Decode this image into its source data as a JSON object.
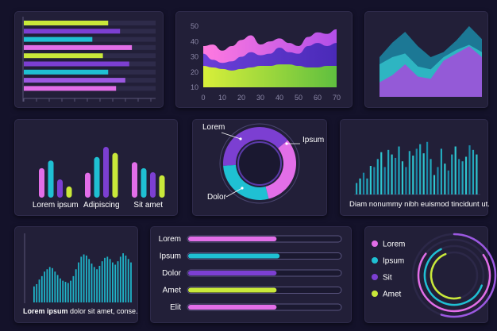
{
  "colors": {
    "pink": "#e26ee8",
    "cyan": "#1fc0d3",
    "purple": "#7c3fd2",
    "lime": "#c9e83a",
    "teal": "#17a0b6",
    "violet": "#9b58e0"
  },
  "panel1": {
    "chart_data": {
      "type": "bar",
      "orientation": "horizontal",
      "max": 100,
      "values": [
        64,
        73,
        52,
        82,
        60,
        80,
        64,
        77,
        70
      ],
      "colors": [
        "lime",
        "purple",
        "cyan",
        "pink",
        "lime",
        "purple",
        "cyan",
        "violet",
        "pink"
      ]
    }
  },
  "panel2": {
    "chart_data": {
      "type": "area",
      "x_ticks": [
        "0",
        "10",
        "20",
        "30",
        "40",
        "50",
        "60",
        "70"
      ],
      "y_ticks": [
        "50",
        "40",
        "30",
        "20",
        "10"
      ],
      "xlim": [
        0,
        70
      ],
      "ylim": [
        10,
        50
      ],
      "x": [
        0,
        5,
        10,
        15,
        20,
        25,
        30,
        35,
        40,
        45,
        50,
        55,
        60,
        65,
        70
      ],
      "series": [
        {
          "color": "pink",
          "values": [
            37,
            38,
            34,
            37,
            41,
            44,
            38,
            40,
            42,
            39,
            37,
            43,
            46,
            45,
            48
          ]
        },
        {
          "color": "purple",
          "values": [
            32,
            28,
            26,
            27,
            30,
            33,
            31,
            32,
            36,
            33,
            32,
            37,
            39,
            37,
            39
          ]
        },
        {
          "color": "lime",
          "values": [
            24,
            23,
            22,
            21,
            22,
            23,
            24,
            24,
            25,
            25,
            24,
            23,
            23,
            24,
            24
          ]
        }
      ]
    }
  },
  "panel3": {
    "chart_data": {
      "type": "area",
      "ylim": [
        0,
        100
      ],
      "x": [
        0,
        1,
        2,
        3,
        4,
        5,
        6,
        7,
        8
      ],
      "series": [
        {
          "color": "teal",
          "values": [
            55,
            75,
            90,
            70,
            55,
            62,
            78,
            98,
            80
          ]
        },
        {
          "color": "cyan",
          "values": [
            45,
            55,
            60,
            42,
            38,
            55,
            65,
            72,
            62
          ]
        },
        {
          "color": "violet",
          "values": [
            20,
            30,
            45,
            28,
            25,
            50,
            60,
            70,
            55
          ]
        }
      ]
    }
  },
  "panel4": {
    "chart_data": {
      "type": "bar",
      "ylim": [
        0,
        100
      ],
      "categories": [
        "Lorem ipsum",
        "Adipiscing",
        "Sit amet"
      ],
      "series": [
        {
          "color": "pink",
          "values": [
            58,
            49,
            70
          ]
        },
        {
          "color": "cyan",
          "values": [
            73,
            80,
            58
          ]
        },
        {
          "color": "purple",
          "values": [
            36,
            100,
            50
          ]
        },
        {
          "color": "lime",
          "values": [
            22,
            88,
            44
          ]
        }
      ]
    }
  },
  "panel5": {
    "chart_data": {
      "type": "pie",
      "style": "donut",
      "slices": [
        {
          "label": "Lorem",
          "value": 40,
          "color": "purple"
        },
        {
          "label": "Ipsum",
          "value": 32,
          "color": "pink"
        },
        {
          "label": "Dolor",
          "value": 28,
          "color": "cyan"
        }
      ]
    }
  },
  "panel6": {
    "chart_data": {
      "type": "bar",
      "ylim": [
        0,
        100
      ],
      "values": [
        20,
        28,
        38,
        28,
        50,
        48,
        62,
        74,
        48,
        78,
        70,
        64,
        84,
        58,
        48,
        76,
        68,
        80,
        88,
        72,
        92,
        62,
        34,
        48,
        80,
        54,
        42,
        70,
        84,
        62,
        58,
        66,
        86,
        78,
        70
      ]
    },
    "caption": "Diam nonummy nibh euismod tincidunt ut."
  },
  "panel7": {
    "chart_data": {
      "type": "bar",
      "ylim": [
        0,
        100
      ],
      "values": [
        28,
        32,
        40,
        46,
        54,
        58,
        62,
        60,
        54,
        48,
        42,
        38,
        36,
        34,
        38,
        46,
        58,
        70,
        80,
        84,
        82,
        76,
        68,
        62,
        58,
        64,
        72,
        78,
        80,
        76,
        70,
        66,
        72,
        80,
        86,
        82,
        76,
        70
      ]
    },
    "caption_bold": "Lorem ipsum",
    "caption_rest": " dolor sit amet, conse."
  },
  "panel8": {
    "chart_data": {
      "type": "bar",
      "orientation": "horizontal",
      "max": 100,
      "categories": [
        "Lorem",
        "Ipsum",
        "Dolor",
        "Amet",
        "Elit"
      ],
      "values": [
        58,
        60,
        58,
        58,
        58
      ],
      "colors": [
        "pink",
        "cyan",
        "purple",
        "lime",
        "pink"
      ]
    }
  },
  "panel9": {
    "chart_data": {
      "type": "pie",
      "style": "radial",
      "legend": [
        {
          "label": "Lorem",
          "color": "pink"
        },
        {
          "label": "Ipsum",
          "color": "cyan"
        },
        {
          "label": "Sit",
          "color": "purple"
        },
        {
          "label": "Amet",
          "color": "lime"
        }
      ],
      "rings": [
        {
          "color": "violet",
          "value": 55
        },
        {
          "color": "pink",
          "value": 70
        },
        {
          "color": "cyan",
          "value": 62
        },
        {
          "color": "lime",
          "value": 48
        }
      ]
    }
  }
}
